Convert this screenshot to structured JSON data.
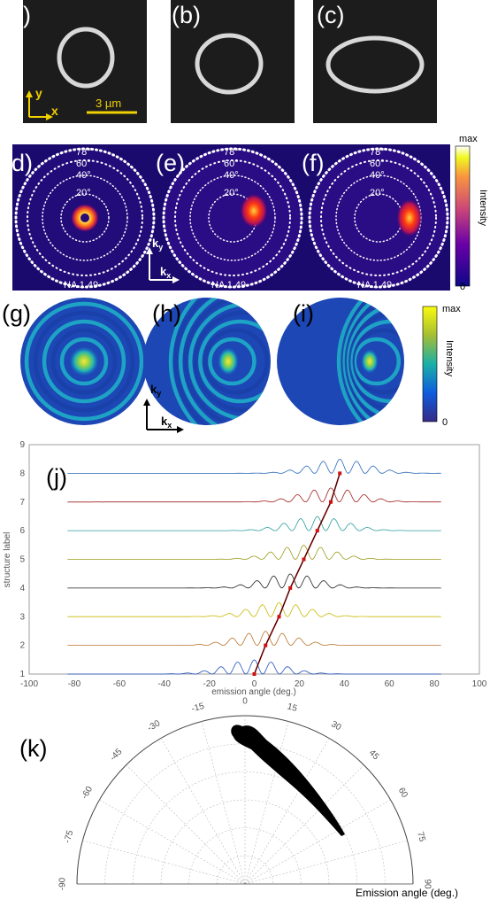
{
  "panels": {
    "a": "(a)",
    "b": "(b)",
    "c": "(c)",
    "d": "(d)",
    "e": "(e)",
    "f": "(f)",
    "g": "(g)",
    "h": "(h)",
    "i": "(i)",
    "j": "(j)",
    "k": "(k)"
  },
  "row1": {
    "axis_y": "y",
    "axis_x": "x",
    "scale_bar": "3 µm"
  },
  "row2": {
    "angles": [
      "78°",
      "60°",
      "40°",
      "20°"
    ],
    "na_label": "NA 1.49",
    "kx": "k",
    "kx_sub": "x",
    "ky": "k",
    "ky_sub": "y",
    "colorbar": {
      "max": "max",
      "min": "0",
      "label": "Intensity"
    },
    "colors": {
      "bg": "#1a0a6e",
      "ring": "#ffffff"
    }
  },
  "row3": {
    "kx": "k",
    "kx_sub": "x",
    "ky": "k",
    "ky_sub": "y",
    "colorbar": {
      "max": "max",
      "min": "0",
      "label": "Intensity"
    }
  },
  "chart_data": [
    {
      "type": "line",
      "panel": "(j)",
      "xlabel": "emission angle (deg.)",
      "ylabel": "structure label",
      "xlim": [
        -100,
        100
      ],
      "ylim": [
        1,
        9
      ],
      "xticks": [
        -100,
        -80,
        -60,
        -40,
        -20,
        0,
        20,
        40,
        60,
        80,
        100
      ],
      "yticks": [
        1,
        2,
        3,
        4,
        5,
        6,
        7,
        8,
        9
      ],
      "peaks": [
        {
          "structure": 1,
          "angle": 0
        },
        {
          "structure": 2,
          "angle": 5
        },
        {
          "structure": 3,
          "angle": 11
        },
        {
          "structure": 4,
          "angle": 16
        },
        {
          "structure": 5,
          "angle": 22
        },
        {
          "structure": 6,
          "angle": 28
        },
        {
          "structure": 7,
          "angle": 34
        },
        {
          "structure": 8,
          "angle": 38
        }
      ]
    },
    {
      "type": "polar",
      "panel": "(k)",
      "xlabel": "Emission angle (deg.)",
      "angle_ticks": [
        "-90",
        "-75",
        "-60",
        "-45",
        "-30",
        "-15",
        "0",
        "15",
        "30",
        "45",
        "60",
        "75",
        "90"
      ],
      "lobe_direction_deg": 35
    }
  ]
}
